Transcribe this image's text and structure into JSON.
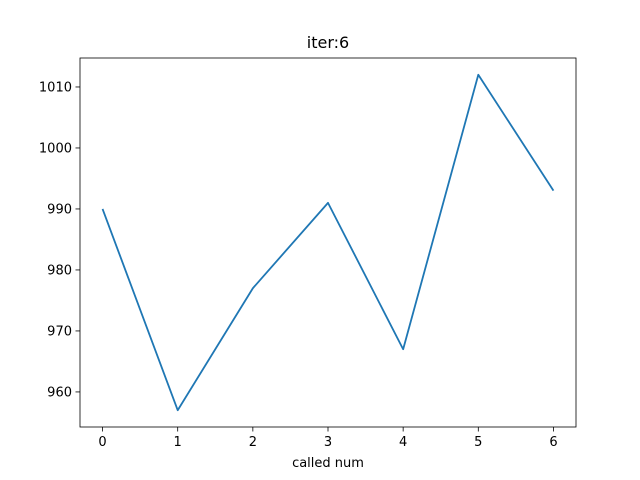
{
  "chart_data": {
    "type": "line",
    "title": "iter:6",
    "xlabel": "called num",
    "ylabel": "",
    "x": [
      0,
      1,
      2,
      3,
      4,
      5,
      6
    ],
    "series": [
      {
        "values": [
          990,
          957,
          977,
          991,
          967,
          1012,
          993
        ],
        "color": "#1f77b4"
      }
    ],
    "xlim": [
      -0.3,
      6.3
    ],
    "ylim": [
      954.25,
      1014.75
    ],
    "x_ticks": [
      0,
      1,
      2,
      3,
      4,
      5,
      6
    ],
    "y_ticks": [
      960,
      970,
      980,
      990,
      1000,
      1010
    ],
    "grid": false,
    "legend": "none"
  }
}
